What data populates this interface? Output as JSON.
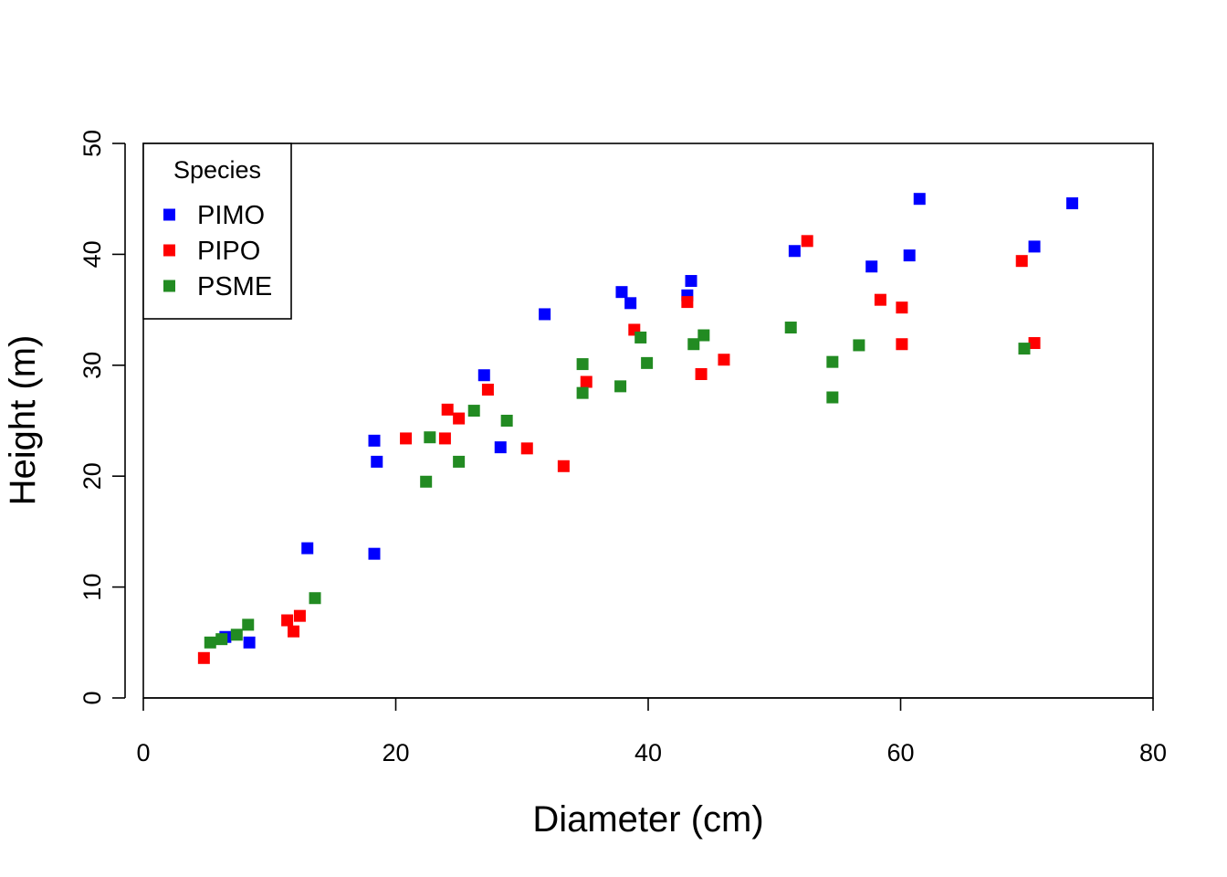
{
  "chart_data": {
    "type": "scatter",
    "title": "",
    "xlabel": "Diameter (cm)",
    "ylabel": "Height (m)",
    "xlim": [
      0,
      80
    ],
    "ylim": [
      0,
      50
    ],
    "xticks": [
      0,
      20,
      40,
      60,
      80
    ],
    "yticks": [
      0,
      10,
      20,
      30,
      40,
      50
    ],
    "grid": false,
    "legend": {
      "title": "Species",
      "position": "top-left"
    },
    "series": [
      {
        "name": "PIMO",
        "color": "#0000ff",
        "marker": "square",
        "points": [
          [
            6.5,
            5.5
          ],
          [
            8.4,
            5.0
          ],
          [
            13.0,
            13.5
          ],
          [
            18.3,
            13.0
          ],
          [
            18.3,
            23.2
          ],
          [
            18.5,
            21.3
          ],
          [
            27.0,
            29.1
          ],
          [
            28.3,
            22.6
          ],
          [
            31.8,
            34.6
          ],
          [
            37.9,
            36.6
          ],
          [
            38.6,
            35.6
          ],
          [
            43.1,
            36.3
          ],
          [
            43.4,
            37.6
          ],
          [
            51.6,
            40.3
          ],
          [
            57.7,
            38.9
          ],
          [
            60.7,
            39.9
          ],
          [
            61.5,
            45.0
          ],
          [
            70.6,
            40.7
          ],
          [
            73.6,
            44.6
          ]
        ]
      },
      {
        "name": "PIPO",
        "color": "#ff0000",
        "marker": "square",
        "points": [
          [
            4.8,
            3.6
          ],
          [
            11.4,
            7.0
          ],
          [
            11.9,
            6.0
          ],
          [
            12.4,
            7.4
          ],
          [
            20.8,
            23.4
          ],
          [
            23.9,
            23.4
          ],
          [
            24.1,
            26.0
          ],
          [
            25.0,
            25.2
          ],
          [
            27.3,
            27.8
          ],
          [
            30.4,
            22.5
          ],
          [
            33.3,
            20.9
          ],
          [
            35.1,
            28.5
          ],
          [
            38.9,
            33.2
          ],
          [
            43.1,
            35.7
          ],
          [
            44.2,
            29.2
          ],
          [
            46.0,
            30.5
          ],
          [
            52.6,
            41.2
          ],
          [
            58.4,
            35.9
          ],
          [
            60.1,
            35.2
          ],
          [
            60.1,
            31.9
          ],
          [
            69.6,
            39.4
          ],
          [
            70.6,
            32.0
          ]
        ]
      },
      {
        "name": "PSME",
        "color": "#228b22",
        "marker": "square",
        "points": [
          [
            5.3,
            5.0
          ],
          [
            6.2,
            5.3
          ],
          [
            7.4,
            5.7
          ],
          [
            8.3,
            6.6
          ],
          [
            13.6,
            9.0
          ],
          [
            22.4,
            19.5
          ],
          [
            22.7,
            23.5
          ],
          [
            25.0,
            21.3
          ],
          [
            26.2,
            25.9
          ],
          [
            28.8,
            25.0
          ],
          [
            34.8,
            30.1
          ],
          [
            34.8,
            27.5
          ],
          [
            37.8,
            28.1
          ],
          [
            39.4,
            32.5
          ],
          [
            39.9,
            30.2
          ],
          [
            43.6,
            31.9
          ],
          [
            44.4,
            32.7
          ],
          [
            51.3,
            33.4
          ],
          [
            54.6,
            30.3
          ],
          [
            54.6,
            27.1
          ],
          [
            56.7,
            31.8
          ],
          [
            69.8,
            31.5
          ]
        ]
      }
    ]
  }
}
